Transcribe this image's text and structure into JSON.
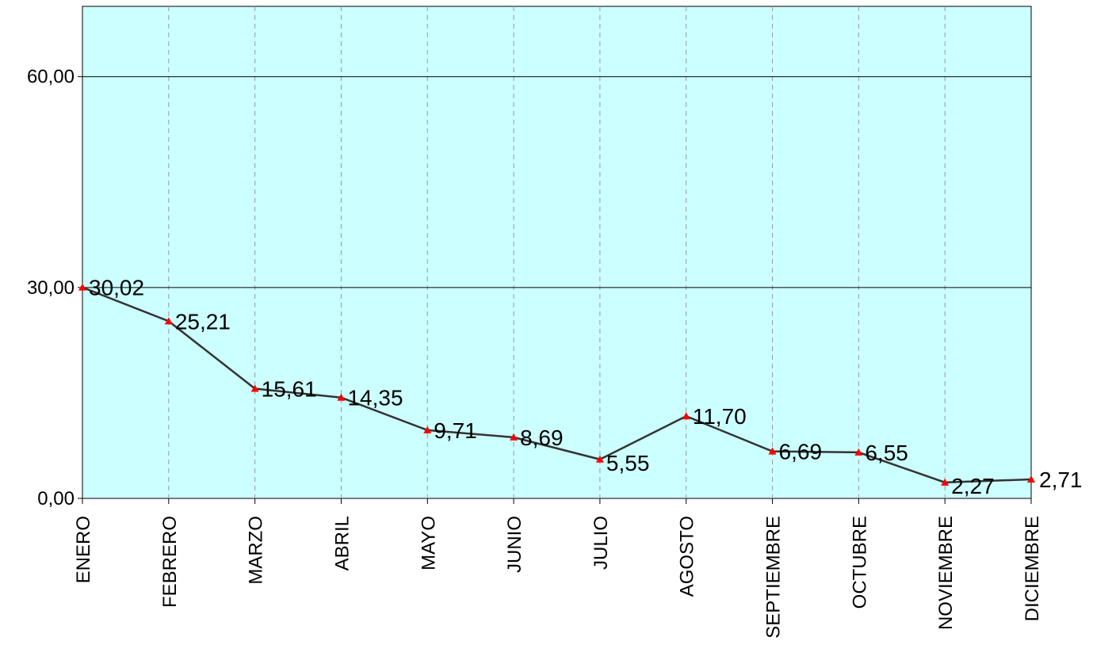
{
  "chart_data": {
    "type": "line",
    "categories": [
      "ENERO",
      "FEBRERO",
      "MARZO",
      "ABRIL",
      "MAYO",
      "JUNIO",
      "JULIO",
      "AGOSTO",
      "SEPTIEMBRE",
      "OCTUBRE",
      "NOVIEMBRE",
      "DICIEMBRE"
    ],
    "series": [
      {
        "values": [
          30.02,
          25.21,
          15.61,
          14.35,
          9.71,
          8.69,
          5.55,
          11.7,
          6.69,
          6.55,
          2.27,
          2.71
        ],
        "data_labels": [
          "30,02",
          "25,21",
          "15,61",
          "14,35",
          "9,71",
          "8,69",
          "5,55",
          "11,70",
          "6,69",
          "6,55",
          "2,27",
          "2,71"
        ]
      }
    ],
    "ylim": [
      0,
      70
    ],
    "yticks": [
      0,
      30,
      60
    ],
    "ytick_labels": [
      "0,00",
      "30,00",
      "60,00"
    ],
    "title": "",
    "xlabel": "",
    "ylabel": "",
    "grid": true,
    "legend": "none",
    "colors": {
      "plot_background": "#ccffff",
      "line": "#333333",
      "marker": "#ff0000",
      "gridline_major": "#000000",
      "gridline_vertical": "#999999"
    }
  }
}
